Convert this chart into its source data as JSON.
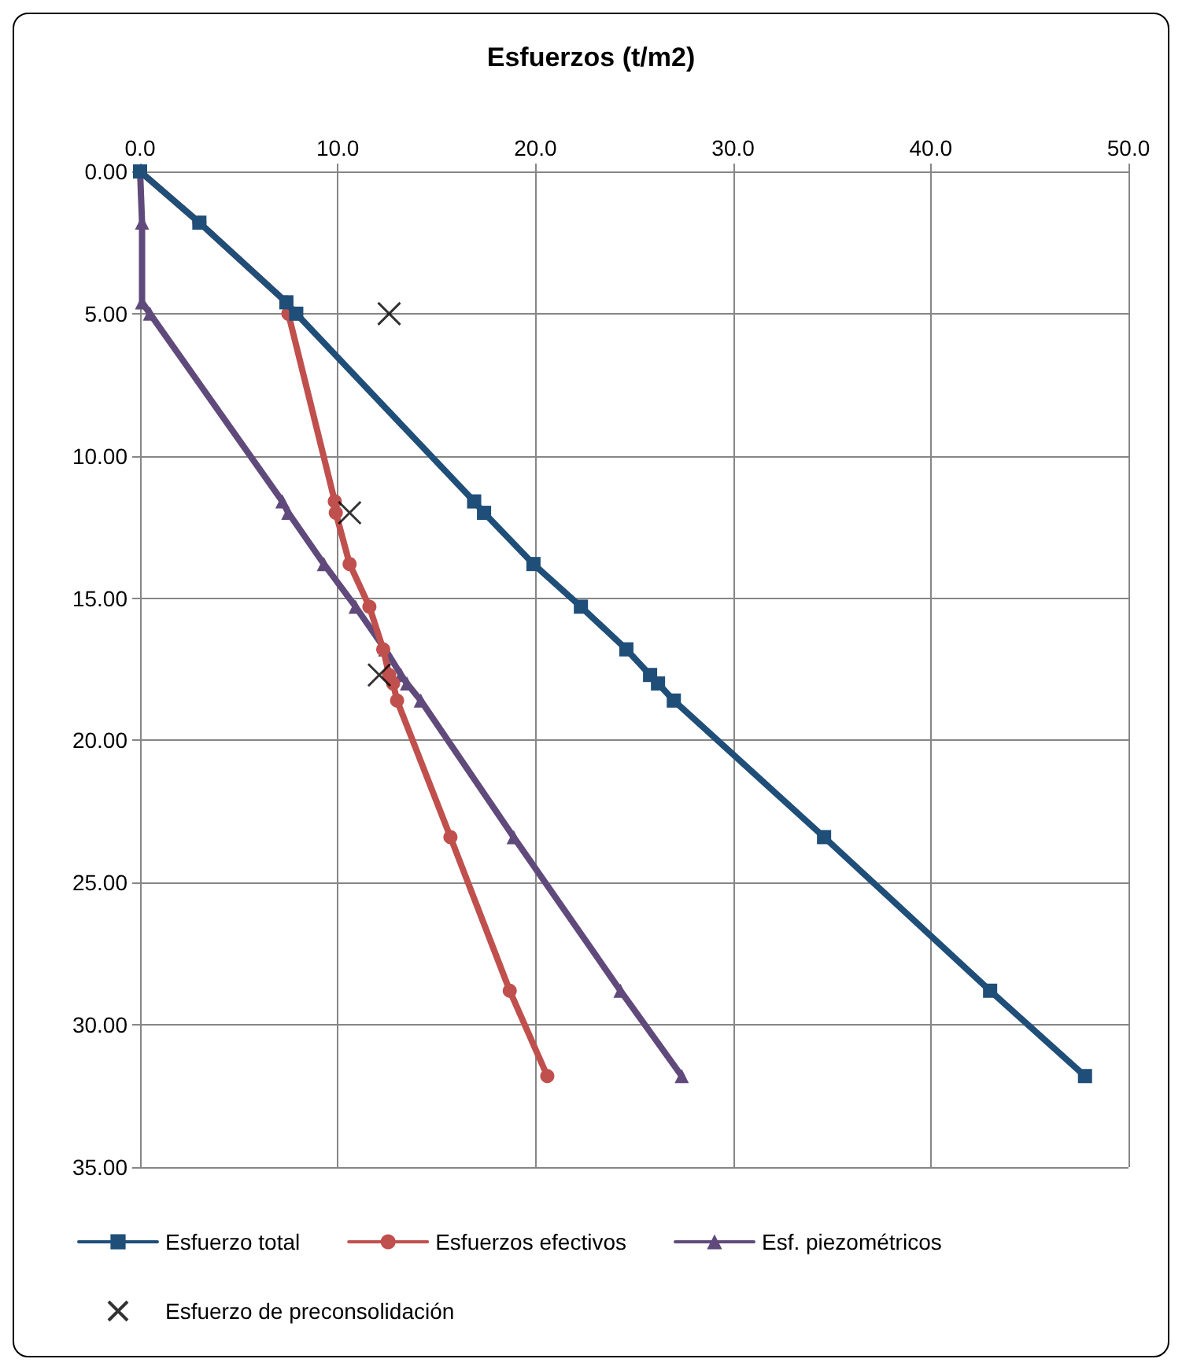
{
  "chart_data": {
    "type": "line",
    "title": "Esfuerzos (t/m2)",
    "xlim": [
      0,
      50
    ],
    "xticks": [
      {
        "value": 0,
        "label": "0.0"
      },
      {
        "value": 10,
        "label": "10.0"
      },
      {
        "value": 20,
        "label": "20.0"
      },
      {
        "value": 30,
        "label": "30.0"
      },
      {
        "value": 40,
        "label": "40.0"
      },
      {
        "value": 50,
        "label": "50.0"
      }
    ],
    "ylim": [
      35,
      0
    ],
    "yticks": [
      {
        "value": 0,
        "label": "0.00"
      },
      {
        "value": 5,
        "label": "5.00"
      },
      {
        "value": 10,
        "label": "10.00"
      },
      {
        "value": 15,
        "label": "15.00"
      },
      {
        "value": 20,
        "label": "20.00"
      },
      {
        "value": 25,
        "label": "25.00"
      },
      {
        "value": 30,
        "label": "30.00"
      },
      {
        "value": 35,
        "label": "35.00"
      }
    ],
    "grid": true,
    "legend": "bottom",
    "series": [
      {
        "name": "Esfuerzo total",
        "color": "#1f4e79",
        "marker": "square",
        "x": [
          0,
          3.0,
          7.4,
          7.9,
          16.9,
          17.4,
          19.9,
          22.3,
          24.6,
          25.8,
          26.2,
          27.0,
          34.6,
          43.0,
          47.8
        ],
        "values": [
          0,
          1.8,
          4.6,
          5.0,
          11.6,
          12.0,
          13.8,
          15.3,
          16.8,
          17.7,
          18.0,
          18.6,
          23.4,
          28.8,
          31.8
        ]
      },
      {
        "name": "Esfuerzos efectivos",
        "color": "#c0504d",
        "marker": "circle",
        "x": [
          0,
          3.0,
          7.4,
          7.5,
          9.85,
          9.9,
          10.6,
          11.6,
          12.3,
          12.6,
          12.8,
          13.0,
          15.7,
          18.7,
          20.6
        ],
        "values": [
          0,
          1.8,
          4.6,
          5.0,
          11.6,
          12.0,
          13.8,
          15.3,
          16.8,
          17.7,
          18.0,
          18.6,
          23.4,
          28.8,
          31.8
        ]
      },
      {
        "name": "Esf. piezométricos",
        "color": "#604a7b",
        "marker": "triangle",
        "x": [
          0,
          0.1,
          0.1,
          0.5,
          7.2,
          7.5,
          9.3,
          10.9,
          12.4,
          13.2,
          13.5,
          14.2,
          18.9,
          24.3,
          27.4
        ],
        "values": [
          0,
          1.8,
          4.6,
          5.0,
          11.6,
          12.0,
          13.8,
          15.3,
          16.8,
          17.7,
          18.0,
          18.6,
          23.4,
          28.8,
          31.8
        ]
      },
      {
        "name": "Esfuerzo de preconsolidación",
        "type": "scatter",
        "color": "#000000",
        "marker": "cross",
        "x": [
          12.6,
          10.6,
          12.1
        ],
        "values": [
          5.0,
          12.0,
          17.7
        ]
      }
    ]
  }
}
